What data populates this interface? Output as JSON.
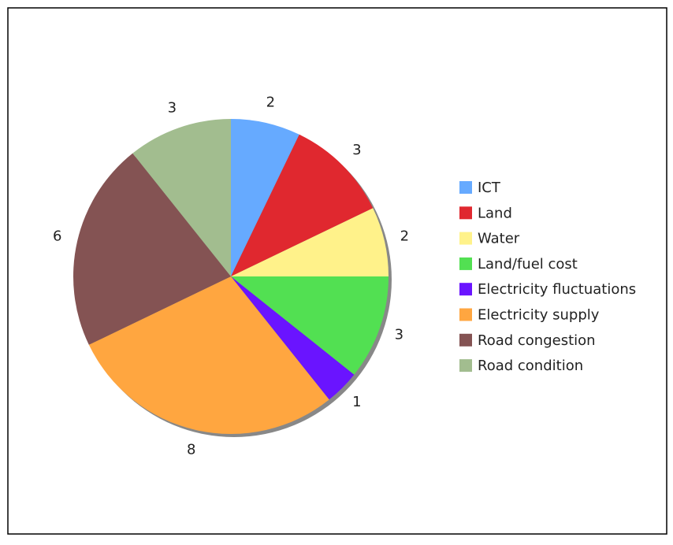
{
  "chart_data": {
    "type": "pie",
    "categories": [
      "ICT",
      "Land",
      "Water",
      "Land/fuel cost",
      "Electricity fluctuations",
      "Electricity supply",
      "Road congestion",
      "Road condition"
    ],
    "values": [
      2,
      3,
      2,
      3,
      1,
      8,
      6,
      3
    ],
    "colors": [
      "#66aaff",
      "#e0282f",
      "#fff28a",
      "#52e052",
      "#6a14ff",
      "#ffa640",
      "#845353",
      "#a2bd8f"
    ],
    "legend": "right"
  }
}
